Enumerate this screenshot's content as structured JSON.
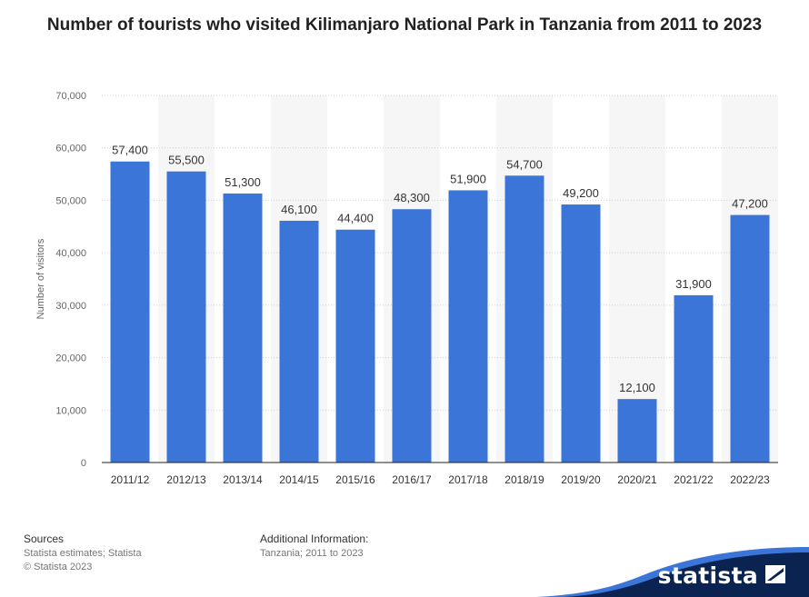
{
  "chart_data": {
    "type": "bar",
    "title": "Number of tourists who visited Kilimanjaro National Park in Tanzania from 2011 to 2023",
    "ylabel": "Number of visitors",
    "xlabel": "",
    "categories": [
      "2011/12",
      "2012/13",
      "2013/14",
      "2014/15",
      "2015/16",
      "2016/17",
      "2017/18",
      "2018/19",
      "2019/20",
      "2020/21",
      "2021/22",
      "2022/23"
    ],
    "values": [
      57400,
      55500,
      51300,
      46100,
      44400,
      48300,
      51900,
      54700,
      49200,
      12100,
      31900,
      47200
    ],
    "data_labels": [
      "57,400",
      "55,500",
      "51,300",
      "46,100",
      "44,400",
      "48,300",
      "51,900",
      "54,700",
      "49,200",
      "12,100",
      "31,900",
      "47,200"
    ],
    "ylim": [
      0,
      70000
    ],
    "yticks": [
      0,
      10000,
      20000,
      30000,
      40000,
      50000,
      60000,
      70000
    ],
    "ytick_labels": [
      "0",
      "10,000",
      "20,000",
      "30,000",
      "40,000",
      "50,000",
      "60,000",
      "70,000"
    ],
    "grid": true,
    "bar_color": "#3a75d7"
  },
  "footer": {
    "sources_heading": "Sources",
    "sources_line1": "Statista estimates; Statista",
    "sources_line2": "© Statista 2023",
    "info_heading": "Additional Information:",
    "info_line1": "Tanzania; 2011 to 2023"
  },
  "brand": {
    "name": "statista",
    "icon": "statista-logo-icon",
    "color": "#0b2350"
  }
}
